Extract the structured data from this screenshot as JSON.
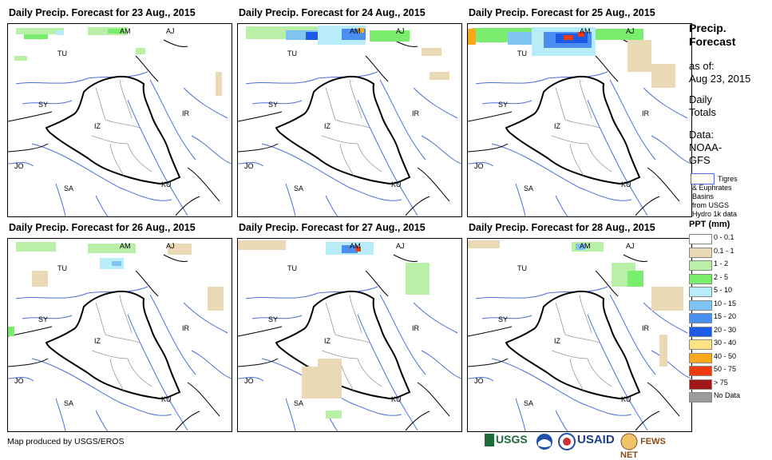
{
  "panels": [
    {
      "title": "Daily Precip. Forecast for 23 Aug., 2015"
    },
    {
      "title": "Daily Precip. Forecast for 24 Aug., 2015"
    },
    {
      "title": "Daily Precip. Forecast for 25 Aug., 2015"
    },
    {
      "title": "Daily Precip. Forecast for 26 Aug., 2015"
    },
    {
      "title": "Daily Precip. Forecast for 27 Aug., 2015"
    },
    {
      "title": "Daily Precip. Forecast for 28 Aug., 2015"
    }
  ],
  "country_labels": {
    "am": "AM",
    "aj": "AJ",
    "tu": "TU",
    "sy": "SY",
    "iz": "IZ",
    "ir": "IR",
    "jo": "JO",
    "sa": "SA",
    "ku": "KU"
  },
  "sidebar": {
    "title_line1": "Precip.",
    "title_line2": "Forecast",
    "as_of_label": "as of:",
    "as_of_date": "Aug 23, 2015",
    "totals_line1": "Daily",
    "totals_line2": "Totals",
    "data_label": "Data:",
    "data_source_line1": "NOAA-",
    "data_source_line2": "GFS",
    "basin_line1": "Tigres",
    "basin_line2": "& Euphrates",
    "basin_line3": "Basins",
    "basin_line4": "from USGS",
    "basin_line5": "Hydro 1k data"
  },
  "legend": {
    "title": "PPT (mm)",
    "items": [
      {
        "label": "0 - 0.1",
        "color": "#ffffff"
      },
      {
        "label": "0.1 - 1",
        "color": "#ead9b5"
      },
      {
        "label": "1 - 2",
        "color": "#b8f0a8"
      },
      {
        "label": "2 - 5",
        "color": "#7aec6e"
      },
      {
        "label": "5 - 10",
        "color": "#b8ecf8"
      },
      {
        "label": "10 - 15",
        "color": "#80c4f4"
      },
      {
        "label": "15 - 20",
        "color": "#4a8ef0"
      },
      {
        "label": "20 - 30",
        "color": "#1e5ae8"
      },
      {
        "label": "30 - 40",
        "color": "#fce484"
      },
      {
        "label": "40 - 50",
        "color": "#f8a818"
      },
      {
        "label": "50 - 75",
        "color": "#f03a10"
      },
      {
        "label": "> 75",
        "color": "#a01818"
      },
      {
        "label": "No Data",
        "color": "#9a9a9a"
      }
    ]
  },
  "footer": {
    "credit": "Map produced by USGS/EROS"
  },
  "logos": {
    "usgs": "USGS",
    "usaid": "USAID",
    "fewsnet": "FEWS NET"
  },
  "colors": {
    "basin": "#4a6fd8",
    "border": "#000000",
    "province": "#999999"
  }
}
